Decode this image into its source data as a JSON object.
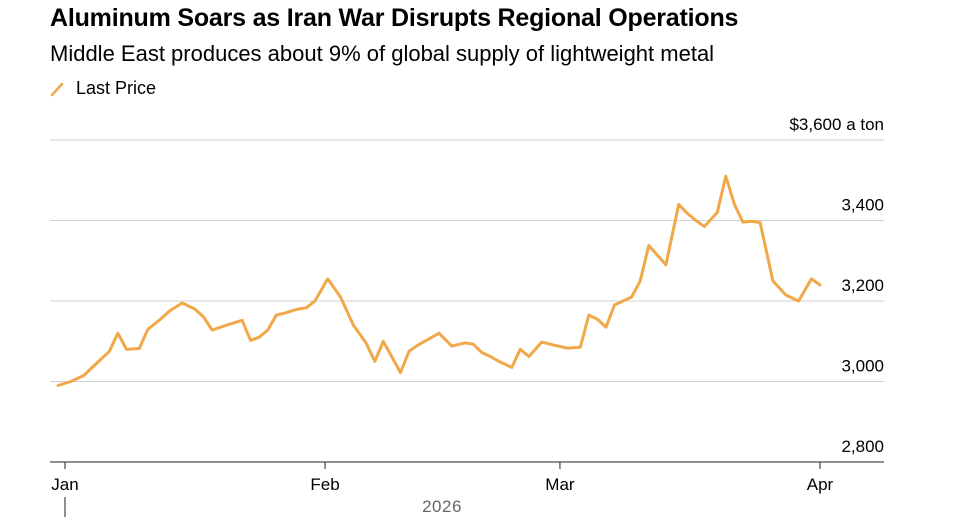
{
  "chart_data": {
    "type": "line",
    "title": "Aluminum Soars as Iran War Disrupts Regional Operations",
    "subtitle": "Middle East produces about 9% of global supply of lightweight metal",
    "legend": [
      {
        "name": "Last Price",
        "color": "#f0a848"
      }
    ],
    "unit_label": "$3,600 a ton",
    "ylim": [
      2800,
      3600
    ],
    "y_ticks": [
      {
        "value": 3400,
        "label": "3,400"
      },
      {
        "value": 3200,
        "label": "3,200"
      },
      {
        "value": 3000,
        "label": "3,000"
      },
      {
        "value": 2800,
        "label": "2,800"
      }
    ],
    "x_ticks": [
      {
        "day": 1,
        "label": "Jan"
      },
      {
        "day": 32,
        "label": "Feb"
      },
      {
        "day": 60,
        "label": "Mar"
      },
      {
        "day": 91,
        "label": "Apr"
      }
    ],
    "year_label": "2026",
    "xlim": [
      -1,
      99
    ],
    "series": [
      {
        "name": "Last Price",
        "x": [
          0,
          1.5,
          3,
          4.5,
          6,
          7,
          8,
          9.5,
          10.5,
          12,
          13,
          14.5,
          16,
          17,
          18,
          19,
          20,
          21.5,
          22.5,
          23.5,
          24.5,
          25.5,
          26.5,
          28,
          29,
          30,
          31.5,
          33,
          34.5,
          36,
          37,
          38,
          40,
          41,
          42,
          43,
          44.5,
          46,
          47.5,
          48.5,
          49.5,
          50.5,
          51.5,
          53,
          54,
          55,
          56.5,
          58,
          59.5,
          61,
          62,
          63,
          64,
          65,
          67,
          68,
          69,
          71,
          72.5,
          73.5,
          74.5,
          75.5,
          77,
          78,
          79,
          80,
          81,
          82,
          83.5,
          85,
          86.5,
          88,
          89
        ],
        "values": [
          2990,
          3000,
          3015,
          3045,
          3075,
          3120,
          3080,
          3082,
          3130,
          3155,
          3175,
          3195,
          3180,
          3160,
          3128,
          3135,
          3142,
          3152,
          3102,
          3110,
          3128,
          3165,
          3170,
          3180,
          3183,
          3200,
          3255,
          3210,
          3140,
          3095,
          3050,
          3100,
          3022,
          3075,
          3090,
          3102,
          3120,
          3088,
          3096,
          3093,
          3072,
          3062,
          3050,
          3035,
          3080,
          3062,
          3098,
          3090,
          3083,
          3085,
          3165,
          3155,
          3135,
          3190,
          3210,
          3250,
          3338,
          3290,
          3440,
          3418,
          3400,
          3385,
          3420,
          3510,
          3440,
          3396,
          3398,
          3395,
          3250,
          3215,
          3200,
          3255,
          3240
        ]
      }
    ]
  }
}
